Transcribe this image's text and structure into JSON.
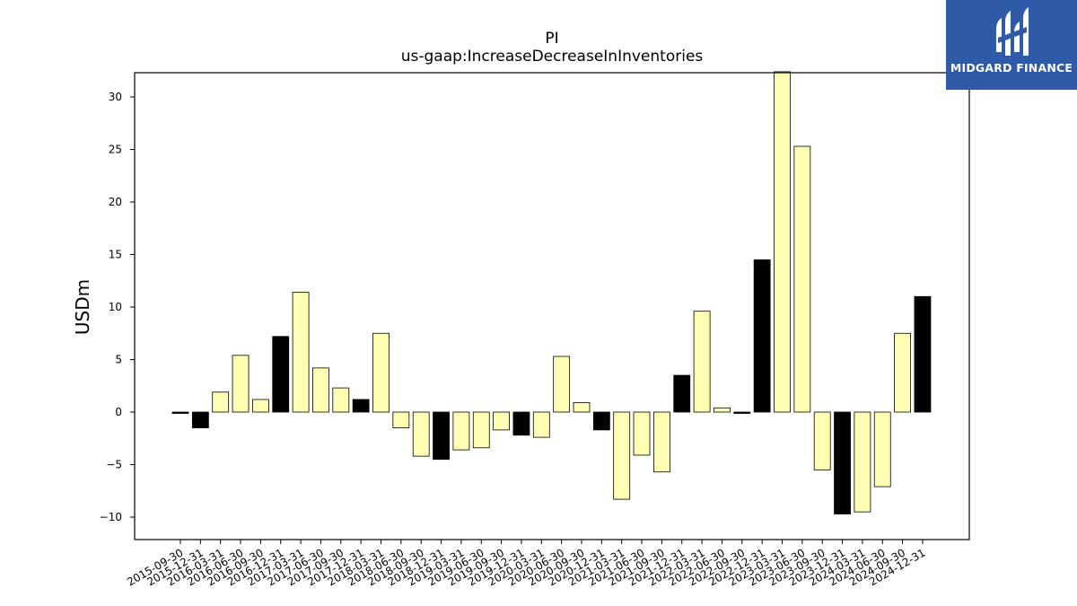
{
  "brand": {
    "name": "MIDGARD FINANCE",
    "color": "#2f5aa8"
  },
  "chart_data": {
    "type": "bar",
    "title": "PI",
    "subtitle": "us-gaap:IncreaseDecreaseInInventories",
    "xlabel": "",
    "ylabel": "USDm",
    "ylim": [
      -12.0,
      32.4
    ],
    "yticks": [
      -10,
      -5,
      0,
      5,
      10,
      15,
      20,
      25,
      30
    ],
    "grid": false,
    "colors": {
      "annual": "#000000",
      "quarterly": "#ffffb3",
      "edge": "#000000"
    },
    "categories": [
      "2015-09-30",
      "2015-12-31",
      "2016-03-31",
      "2016-06-30",
      "2016-09-30",
      "2016-12-31",
      "2017-03-31",
      "2017-06-30",
      "2017-09-30",
      "2017-12-31",
      "2018-03-31",
      "2018-06-30",
      "2018-09-30",
      "2018-12-31",
      "2019-03-31",
      "2019-06-30",
      "2019-09-30",
      "2019-12-31",
      "2020-03-31",
      "2020-06-30",
      "2020-09-30",
      "2020-12-31",
      "2021-03-31",
      "2021-06-30",
      "2021-09-30",
      "2021-12-31",
      "2022-03-31",
      "2022-06-30",
      "2022-09-30",
      "2022-12-31",
      "2023-03-31",
      "2023-06-30",
      "2023-09-30",
      "2023-12-31",
      "2024-03-31",
      "2024-06-30",
      "2024-09-30",
      "2024-12-31"
    ],
    "values": [
      -0.1,
      -1.5,
      1.9,
      5.4,
      1.2,
      7.2,
      11.4,
      4.2,
      2.3,
      1.2,
      7.5,
      -1.5,
      -4.2,
      -4.5,
      -3.6,
      -3.4,
      -1.7,
      -2.2,
      -2.4,
      5.3,
      0.9,
      -1.7,
      -8.3,
      -4.1,
      -5.7,
      3.5,
      9.6,
      0.4,
      -0.1,
      14.5,
      32.4,
      25.3,
      -5.5,
      -9.7,
      -9.5,
      -7.1,
      7.5,
      11.0
    ],
    "annual": [
      true,
      true,
      false,
      false,
      false,
      true,
      false,
      false,
      false,
      true,
      false,
      false,
      false,
      true,
      false,
      false,
      false,
      true,
      false,
      false,
      false,
      true,
      false,
      false,
      false,
      true,
      false,
      false,
      true,
      true,
      false,
      false,
      false,
      true,
      false,
      false,
      false,
      true
    ]
  }
}
